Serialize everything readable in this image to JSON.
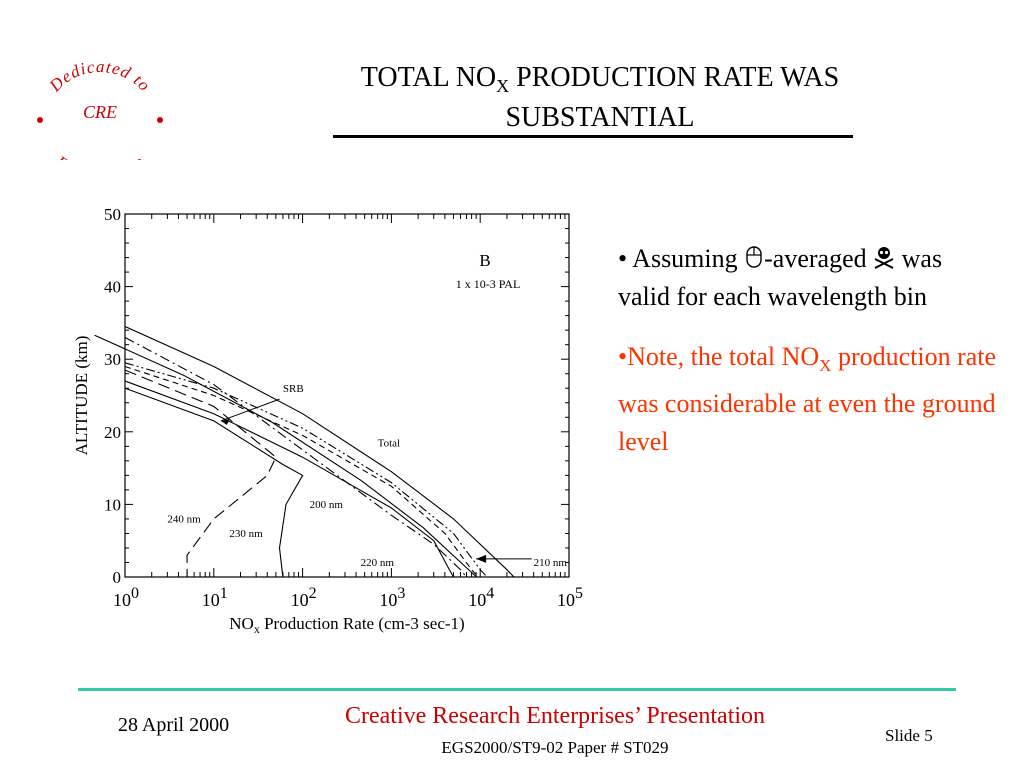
{
  "logo": {
    "top_text": "Dedicated to",
    "center_text": "CRE",
    "bottom_text": "Excellence",
    "color": "#cc0000"
  },
  "title": {
    "line1_pre": "TOTAL NO",
    "line1_sub": "X",
    "line1_post": " PRODUCTION RATE WAS",
    "line2": "SUBSTANTIAL"
  },
  "bullets": [
    {
      "prefix": "• Assuming ",
      "icon1": "mouse-icon",
      "middle": "-averaged ",
      "icon2": "skull-icon",
      "rest": " was valid for each wavelength bin"
    },
    {
      "pre": "•Note, the total NO",
      "sub": "X",
      "post": " production rate was considerable at even the ground level",
      "color": "#ff3300"
    }
  ],
  "footer": {
    "date": "28 April 2000",
    "org": "Creative Research Enterprises’ Presentation",
    "paper": "EGS2000/ST9-02 Paper # ST029",
    "slide": "Slide 5",
    "rule_color": "#33ccaa"
  },
  "chart_data": {
    "type": "line",
    "panel_label": "B",
    "condition": "1 x 10-3 PAL",
    "ylabel": "ALTITUDE (km)",
    "xlabel_pre": "NO",
    "xlabel_sub": "x",
    "xlabel_post": " Production Rate (cm-3 sec-1)",
    "xscale": "log",
    "xlim": [
      1,
      100000
    ],
    "ylim": [
      0,
      50
    ],
    "xtick_values": [
      1,
      10,
      100,
      1000,
      10000,
      100000
    ],
    "xtick_bases": [
      "10",
      "10",
      "10",
      "10",
      "10",
      "10"
    ],
    "xtick_exps": [
      "0",
      "1",
      "2",
      "3",
      "4",
      "5"
    ],
    "ytick_values": [
      0,
      10,
      20,
      30,
      40,
      50
    ],
    "ytick_labels": [
      "0",
      "10",
      "20",
      "30",
      "40",
      "50"
    ],
    "series": [
      {
        "name": "Total",
        "style": "solid",
        "x": [
          1,
          10,
          100,
          1000,
          5000,
          20000,
          24000
        ],
        "y": [
          34.5,
          29,
          22.5,
          14.5,
          8,
          1,
          0
        ]
      },
      {
        "name": "SRB",
        "style": "dashdot",
        "x": [
          1,
          10,
          100,
          1000,
          3000,
          6000,
          7000
        ],
        "y": [
          33,
          26.5,
          17.5,
          8.5,
          4.5,
          1,
          0
        ]
      },
      {
        "name": "210 nm",
        "style": "dashdotdot",
        "x": [
          1,
          10,
          100,
          1000,
          5000,
          10000,
          12000
        ],
        "y": [
          29.5,
          26,
          20.5,
          13,
          6,
          1,
          0
        ]
      },
      {
        "name": "200 nm",
        "style": "shortdash",
        "x": [
          1,
          10,
          100,
          1000,
          4000,
          8000,
          9500
        ],
        "y": [
          29,
          25,
          19.5,
          12.5,
          6,
          1,
          0
        ]
      },
      {
        "name": "220 nm",
        "style": "solid",
        "x": [
          1,
          10,
          100,
          1000,
          3000,
          4500,
          5000
        ],
        "y": [
          27,
          22.5,
          16.5,
          9.5,
          5,
          1,
          0
        ]
      },
      {
        "name": "230 nm",
        "style": "solid",
        "x": [
          1,
          10,
          60,
          100,
          65,
          55,
          60
        ],
        "y": [
          26,
          21.5,
          15.5,
          14,
          10,
          4,
          0
        ]
      },
      {
        "name": "240 nm",
        "style": "longdash",
        "x": [
          1,
          10,
          50,
          40,
          10,
          5,
          5
        ],
        "y": [
          28.5,
          23.5,
          16.5,
          14,
          8,
          3,
          0
        ]
      }
    ],
    "annotations": [
      {
        "text": "SRB",
        "x": 60,
        "y": 25.5
      },
      {
        "text": "Total",
        "x": 700,
        "y": 18
      },
      {
        "text": "200 nm",
        "x": 120,
        "y": 9.5
      },
      {
        "text": "240 nm",
        "x": 3,
        "y": 7.5
      },
      {
        "text": "230 nm",
        "x": 15,
        "y": 5.5
      },
      {
        "text": "220 nm",
        "x": 450,
        "y": 1.5
      },
      {
        "text": "210 nm",
        "x": 40000,
        "y": 1.5
      }
    ]
  }
}
